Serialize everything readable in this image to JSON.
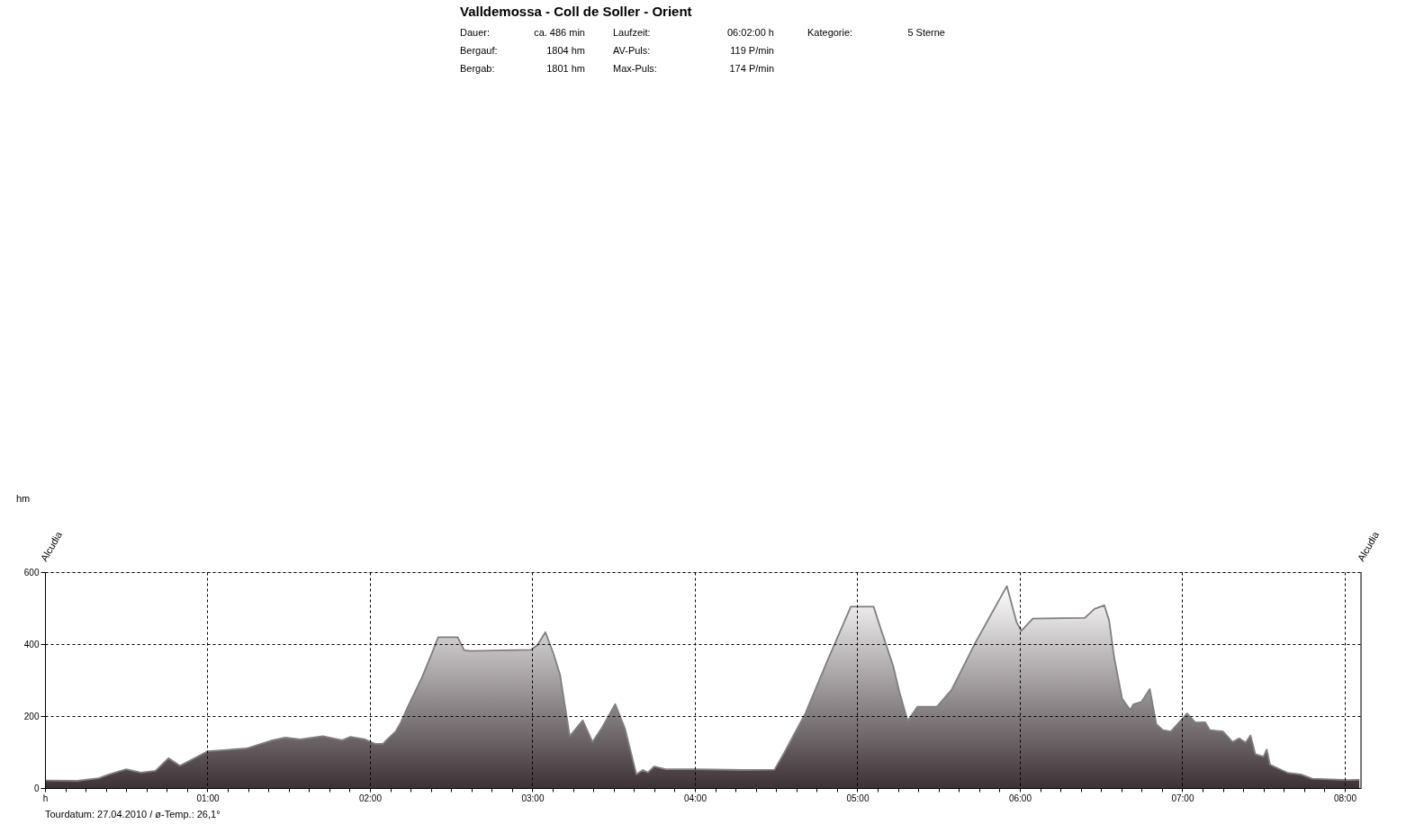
{
  "chart_data": {
    "type": "area",
    "title": "Valldemossa - Coll de Soller - Orient",
    "annotations": [
      "Dauer:",
      "ca. 486 min",
      "Laufzeit:",
      "06:02:00 h",
      "Kategorie:",
      "5 Sterne",
      "Bergauf:",
      "1804 hm",
      "AV-Puls:",
      "119 P/min",
      "Bergab:",
      "1801 hm",
      "Max-Puls:",
      "174 P/min",
      "hm",
      "Alcudia",
      "Alcudia",
      "Tourdatum: 27.04.2010 / ø-Temp.: 26,1°"
    ],
    "x": [
      0,
      0.2,
      0.33,
      0.39,
      0.5,
      0.59,
      0.68,
      0.76,
      0.83,
      0.87,
      0.95,
      1.0,
      1.24,
      1.4,
      1.48,
      1.57,
      1.71,
      1.83,
      1.88,
      1.97,
      2.03,
      2.08,
      2.1,
      2.16,
      2.19,
      2.23,
      2.32,
      2.38,
      2.42,
      2.54,
      2.58,
      2.62,
      2.99,
      3.03,
      3.08,
      3.13,
      3.17,
      3.23,
      3.31,
      3.37,
      3.43,
      3.51,
      3.57,
      3.64,
      3.68,
      3.71,
      3.75,
      3.82,
      4.0,
      4.3,
      4.49,
      4.55,
      4.68,
      4.81,
      4.96,
      5.1,
      5.14,
      5.22,
      5.26,
      5.31,
      5.37,
      5.49,
      5.58,
      5.73,
      5.92,
      5.98,
      6.01,
      6.08,
      6.4,
      6.46,
      6.52,
      6.55,
      6.58,
      6.63,
      6.68,
      6.7,
      6.75,
      6.8,
      6.84,
      6.88,
      6.93,
      7.03,
      7.08,
      7.14,
      7.17,
      7.25,
      7.31,
      7.35,
      7.39,
      7.42,
      7.45,
      7.5,
      7.52,
      7.54,
      7.65,
      7.73,
      7.8,
      7.98,
      8.02,
      8.09
    ],
    "series": [
      {
        "color": "#3d3236",
        "values": [
          21,
          20,
          27,
          37,
          52,
          43,
          48,
          83,
          62,
          71,
          90,
          102,
          110,
          133,
          140,
          135,
          144,
          133,
          142,
          135,
          123,
          123,
          132,
          158,
          182,
          223,
          307,
          373,
          419,
          419,
          383,
          381,
          384,
          397,
          433,
          373,
          315,
          144,
          188,
          128,
          169,
          233,
          165,
          38,
          50,
          43,
          60,
          52,
          52,
          50,
          51,
          98,
          207,
          348,
          504,
          504,
          448,
          340,
          265,
          186,
          226,
          226,
          273,
          407,
          561,
          461,
          437,
          471,
          473,
          498,
          508,
          465,
          365,
          248,
          217,
          233,
          240,
          275,
          178,
          161,
          157,
          207,
          182,
          183,
          161,
          157,
          128,
          138,
          126,
          146,
          94,
          87,
          107,
          65,
          42,
          38,
          26,
          23,
          22,
          23
        ]
      }
    ],
    "xlim": [
      0,
      8.1
    ],
    "ylim": [
      0,
      600
    ],
    "xticks": [
      {
        "value": 0,
        "label": "h"
      },
      {
        "value": 0.125,
        "label": null
      },
      {
        "value": 0.25,
        "label": null
      },
      {
        "value": 0.375,
        "label": null
      },
      {
        "value": 0.5,
        "label": null
      },
      {
        "value": 0.625,
        "label": null
      },
      {
        "value": 0.75,
        "label": null
      },
      {
        "value": 0.875,
        "label": null
      },
      {
        "value": 1,
        "label": "01:00"
      },
      {
        "value": 1.125,
        "label": null
      },
      {
        "value": 1.25,
        "label": null
      },
      {
        "value": 1.375,
        "label": null
      },
      {
        "value": 1.5,
        "label": null
      },
      {
        "value": 1.625,
        "label": null
      },
      {
        "value": 1.75,
        "label": null
      },
      {
        "value": 1.875,
        "label": null
      },
      {
        "value": 2,
        "label": "02:00"
      },
      {
        "value": 2.125,
        "label": null
      },
      {
        "value": 2.25,
        "label": null
      },
      {
        "value": 2.375,
        "label": null
      },
      {
        "value": 2.5,
        "label": null
      },
      {
        "value": 2.625,
        "label": null
      },
      {
        "value": 2.75,
        "label": null
      },
      {
        "value": 2.875,
        "label": null
      },
      {
        "value": 3,
        "label": "03:00"
      },
      {
        "value": 3.125,
        "label": null
      },
      {
        "value": 3.25,
        "label": null
      },
      {
        "value": 3.375,
        "label": null
      },
      {
        "value": 3.5,
        "label": null
      },
      {
        "value": 3.625,
        "label": null
      },
      {
        "value": 3.75,
        "label": null
      },
      {
        "value": 3.875,
        "label": null
      },
      {
        "value": 4,
        "label": "04:00"
      },
      {
        "value": 4.125,
        "label": null
      },
      {
        "value": 4.25,
        "label": null
      },
      {
        "value": 4.375,
        "label": null
      },
      {
        "value": 4.5,
        "label": null
      },
      {
        "value": 4.625,
        "label": null
      },
      {
        "value": 4.75,
        "label": null
      },
      {
        "value": 4.875,
        "label": null
      },
      {
        "value": 5,
        "label": "05:00"
      },
      {
        "value": 5.125,
        "label": null
      },
      {
        "value": 5.25,
        "label": null
      },
      {
        "value": 5.375,
        "label": null
      },
      {
        "value": 5.5,
        "label": null
      },
      {
        "value": 5.625,
        "label": null
      },
      {
        "value": 5.75,
        "label": null
      },
      {
        "value": 5.875,
        "label": null
      },
      {
        "value": 6,
        "label": "06:00"
      },
      {
        "value": 6.125,
        "label": null
      },
      {
        "value": 6.25,
        "label": null
      },
      {
        "value": 6.375,
        "label": null
      },
      {
        "value": 6.5,
        "label": null
      },
      {
        "value": 6.625,
        "label": null
      },
      {
        "value": 6.75,
        "label": null
      },
      {
        "value": 6.875,
        "label": null
      },
      {
        "value": 7,
        "label": "07:00"
      },
      {
        "value": 7.125,
        "label": null
      },
      {
        "value": 7.25,
        "label": null
      },
      {
        "value": 7.375,
        "label": null
      },
      {
        "value": 7.5,
        "label": null
      },
      {
        "value": 7.625,
        "label": null
      },
      {
        "value": 7.75,
        "label": null
      },
      {
        "value": 7.875,
        "label": null
      },
      {
        "value": 8,
        "label": "08:00"
      }
    ],
    "yticks": [
      0,
      200,
      400,
      600
    ],
    "grid": true
  }
}
